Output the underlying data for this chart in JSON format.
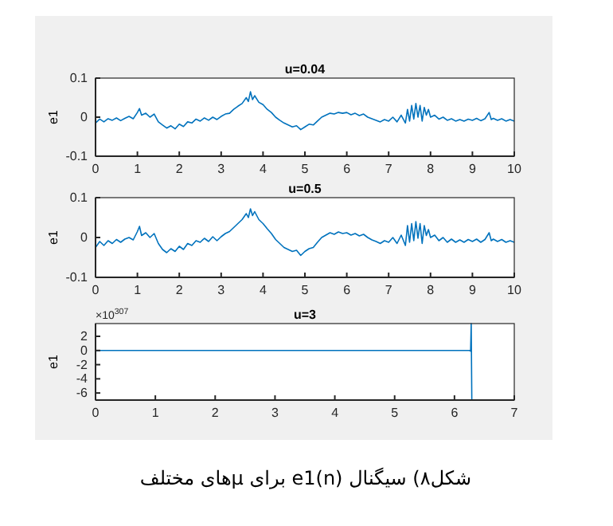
{
  "chart_data": [
    {
      "type": "line",
      "title": "u=0.04",
      "ylabel": "e1",
      "xlim": [
        0,
        10
      ],
      "ylim": [
        -0.1,
        0.1
      ],
      "xticks": [
        0,
        1,
        2,
        3,
        4,
        5,
        6,
        7,
        8,
        9,
        10
      ],
      "yticks": [
        -0.1,
        0,
        0.1
      ],
      "grid": false,
      "series": [
        {
          "color": "#0072bd",
          "x": [
            0,
            0.1,
            0.2,
            0.3,
            0.4,
            0.5,
            0.6,
            0.7,
            0.8,
            0.9,
            1.0,
            1.05,
            1.1,
            1.2,
            1.3,
            1.4,
            1.5,
            1.6,
            1.7,
            1.8,
            1.9,
            2.0,
            2.1,
            2.2,
            2.3,
            2.4,
            2.5,
            2.6,
            2.7,
            2.8,
            2.9,
            3.0,
            3.1,
            3.2,
            3.3,
            3.4,
            3.5,
            3.6,
            3.65,
            3.7,
            3.75,
            3.8,
            3.9,
            4.0,
            4.1,
            4.2,
            4.3,
            4.4,
            4.5,
            4.6,
            4.7,
            4.8,
            4.9,
            5.0,
            5.1,
            5.2,
            5.3,
            5.4,
            5.5,
            5.6,
            5.7,
            5.8,
            5.9,
            6.0,
            6.1,
            6.2,
            6.3,
            6.4,
            6.5,
            6.6,
            6.7,
            6.8,
            6.9,
            7.0,
            7.1,
            7.2,
            7.3,
            7.4,
            7.45,
            7.5,
            7.55,
            7.6,
            7.65,
            7.7,
            7.75,
            7.8,
            7.85,
            7.9,
            7.95,
            8.0,
            8.1,
            8.2,
            8.3,
            8.4,
            8.5,
            8.6,
            8.7,
            8.8,
            8.9,
            9.0,
            9.1,
            9.2,
            9.3,
            9.4,
            9.45,
            9.5,
            9.6,
            9.7,
            9.8,
            9.9,
            10
          ],
          "values": [
            -0.015,
            -0.005,
            -0.012,
            -0.004,
            -0.008,
            -0.002,
            -0.009,
            -0.003,
            0.002,
            -0.004,
            0.012,
            0.022,
            0.005,
            0.01,
            0.0,
            0.008,
            -0.012,
            -0.02,
            -0.028,
            -0.022,
            -0.03,
            -0.018,
            -0.024,
            -0.012,
            -0.015,
            -0.005,
            -0.01,
            -0.002,
            -0.008,
            0.0,
            -0.006,
            0.002,
            0.008,
            0.01,
            0.02,
            0.028,
            0.035,
            0.05,
            0.04,
            0.065,
            0.045,
            0.055,
            0.038,
            0.032,
            0.02,
            0.012,
            0.0,
            -0.008,
            -0.015,
            -0.02,
            -0.025,
            -0.022,
            -0.032,
            -0.025,
            -0.018,
            -0.02,
            -0.01,
            0.0,
            0.005,
            0.01,
            0.008,
            0.012,
            0.01,
            0.012,
            0.006,
            0.01,
            0.004,
            0.008,
            0.0,
            -0.004,
            -0.008,
            -0.012,
            -0.006,
            -0.01,
            0.0,
            -0.012,
            0.005,
            -0.015,
            0.02,
            -0.01,
            0.03,
            -0.005,
            0.035,
            0.0,
            0.03,
            -0.01,
            0.025,
            0.005,
            0.02,
            0.0,
            0.005,
            -0.005,
            0.0,
            -0.008,
            -0.004,
            -0.01,
            -0.006,
            -0.01,
            -0.005,
            -0.008,
            -0.003,
            -0.009,
            -0.004,
            0.012,
            -0.006,
            -0.003,
            -0.008,
            -0.004,
            -0.01,
            -0.006,
            -0.01
          ]
        }
      ]
    },
    {
      "type": "line",
      "title": "u=0.5",
      "ylabel": "e1",
      "xlim": [
        0,
        10
      ],
      "ylim": [
        -0.1,
        0.1
      ],
      "xticks": [
        0,
        1,
        2,
        3,
        4,
        5,
        6,
        7,
        8,
        9,
        10
      ],
      "yticks": [
        -0.1,
        0,
        0.1
      ],
      "grid": false,
      "series": [
        {
          "color": "#0072bd",
          "x": [
            0,
            0.1,
            0.2,
            0.3,
            0.4,
            0.5,
            0.6,
            0.7,
            0.8,
            0.9,
            1.0,
            1.05,
            1.1,
            1.2,
            1.3,
            1.4,
            1.5,
            1.6,
            1.7,
            1.8,
            1.9,
            2.0,
            2.1,
            2.2,
            2.3,
            2.4,
            2.5,
            2.6,
            2.7,
            2.8,
            2.9,
            3.0,
            3.1,
            3.2,
            3.3,
            3.4,
            3.5,
            3.6,
            3.65,
            3.7,
            3.75,
            3.8,
            3.9,
            4.0,
            4.1,
            4.2,
            4.3,
            4.4,
            4.5,
            4.6,
            4.7,
            4.8,
            4.9,
            5.0,
            5.1,
            5.2,
            5.3,
            5.4,
            5.5,
            5.6,
            5.7,
            5.8,
            5.9,
            6.0,
            6.1,
            6.2,
            6.3,
            6.4,
            6.5,
            6.6,
            6.7,
            6.8,
            6.9,
            7.0,
            7.1,
            7.2,
            7.3,
            7.4,
            7.45,
            7.5,
            7.55,
            7.6,
            7.65,
            7.7,
            7.75,
            7.8,
            7.85,
            7.9,
            7.95,
            8.0,
            8.1,
            8.2,
            8.3,
            8.4,
            8.5,
            8.6,
            8.7,
            8.8,
            8.9,
            9.0,
            9.1,
            9.2,
            9.3,
            9.4,
            9.45,
            9.5,
            9.6,
            9.7,
            9.8,
            9.9,
            10
          ],
          "values": [
            -0.025,
            -0.01,
            -0.02,
            -0.008,
            -0.015,
            -0.005,
            -0.012,
            -0.004,
            0.0,
            -0.006,
            0.015,
            0.028,
            0.005,
            0.012,
            0.0,
            0.01,
            -0.015,
            -0.03,
            -0.038,
            -0.028,
            -0.035,
            -0.022,
            -0.03,
            -0.015,
            -0.02,
            -0.008,
            -0.012,
            -0.002,
            -0.01,
            0.002,
            -0.008,
            0.002,
            0.01,
            0.015,
            0.025,
            0.035,
            0.045,
            0.06,
            0.05,
            0.072,
            0.055,
            0.065,
            0.045,
            0.035,
            0.022,
            0.01,
            -0.005,
            -0.015,
            -0.025,
            -0.03,
            -0.035,
            -0.032,
            -0.045,
            -0.035,
            -0.028,
            -0.025,
            -0.012,
            0.0,
            0.006,
            0.012,
            0.008,
            0.014,
            0.01,
            0.012,
            0.006,
            0.01,
            0.004,
            0.008,
            0.0,
            -0.006,
            -0.01,
            -0.015,
            -0.008,
            -0.012,
            0.0,
            -0.015,
            0.006,
            -0.02,
            0.03,
            -0.012,
            0.035,
            -0.008,
            0.04,
            -0.002,
            0.035,
            -0.015,
            0.03,
            0.005,
            0.02,
            0.0,
            0.006,
            -0.008,
            0.0,
            -0.012,
            -0.004,
            -0.012,
            -0.006,
            -0.012,
            -0.005,
            -0.01,
            -0.004,
            -0.012,
            -0.005,
            0.012,
            -0.008,
            -0.004,
            -0.01,
            -0.005,
            -0.012,
            -0.008,
            -0.012
          ]
        }
      ]
    },
    {
      "type": "line",
      "title": "u=3",
      "ylabel": "e1",
      "xlim": [
        0,
        7
      ],
      "ylim": [
        -7,
        3.8
      ],
      "xticks": [
        0,
        1,
        2,
        3,
        4,
        5,
        6,
        7
      ],
      "yticks": [
        -6,
        -4,
        -2,
        0,
        2
      ],
      "grid": false,
      "annotations": [
        "×10$^{307}$",
        "شکل۸) سیگنال e1(n) برای μهای مختلف"
      ],
      "series": [
        {
          "color": "#0072bd",
          "x": [
            0,
            1,
            2,
            3,
            4,
            5,
            6,
            6.25,
            6.27,
            6.28,
            6.29
          ],
          "values": [
            0,
            0,
            0,
            0,
            0,
            0,
            0,
            0,
            -0.1,
            3.8,
            -7
          ]
        }
      ]
    }
  ]
}
